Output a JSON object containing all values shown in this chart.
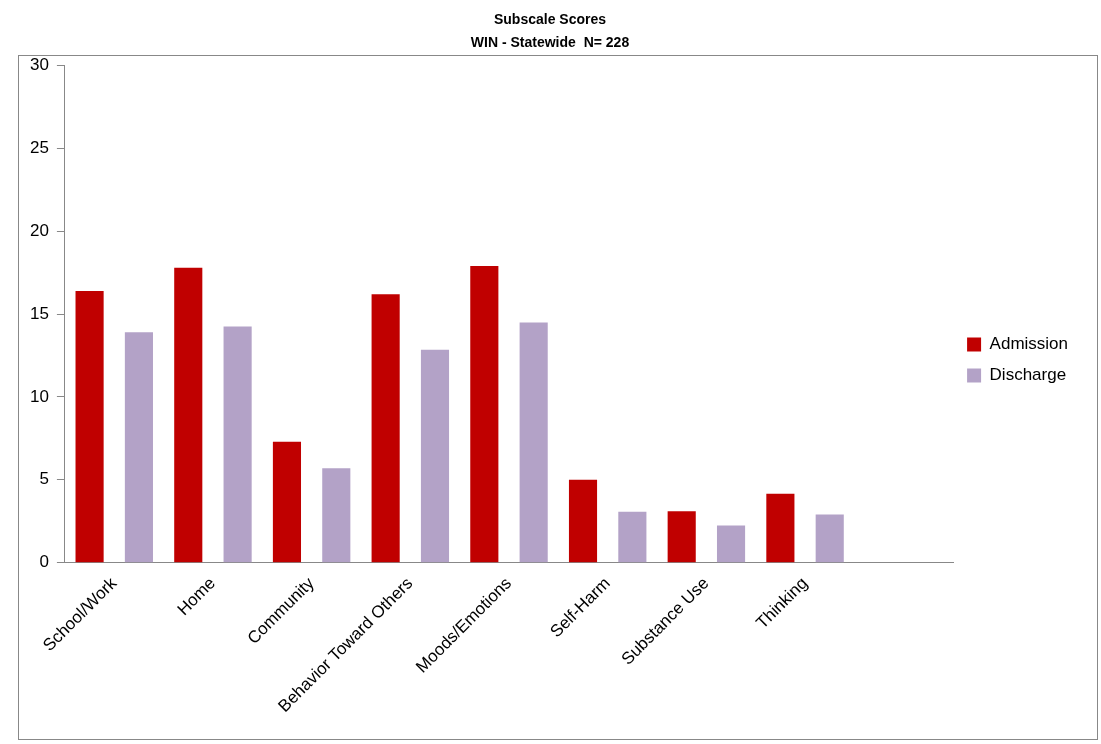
{
  "chart_data": {
    "type": "bar",
    "title": "Subscale Scores",
    "subtitle": "WIN - Statewide  N= 228",
    "categories": [
      "School/Work",
      "Home",
      "Community",
      "Behavior Toward Others",
      "Moods/Emotions",
      "Self-Harm",
      "Substance Use",
      "Thinking",
      null
    ],
    "series": [
      {
        "name": "Admission",
        "color": "#c00000",
        "values": [
          16.4,
          17.8,
          7.3,
          16.2,
          17.9,
          5.0,
          3.1,
          4.15,
          null
        ]
      },
      {
        "name": "Discharge",
        "color": "#b3a2c7",
        "values": [
          13.9,
          14.25,
          5.7,
          12.85,
          14.5,
          3.07,
          2.24,
          2.9,
          null
        ]
      }
    ],
    "ylim": [
      0,
      30
    ],
    "yticks": [
      0,
      5,
      10,
      15,
      20,
      25,
      30
    ],
    "grid": false,
    "legend": "right"
  }
}
